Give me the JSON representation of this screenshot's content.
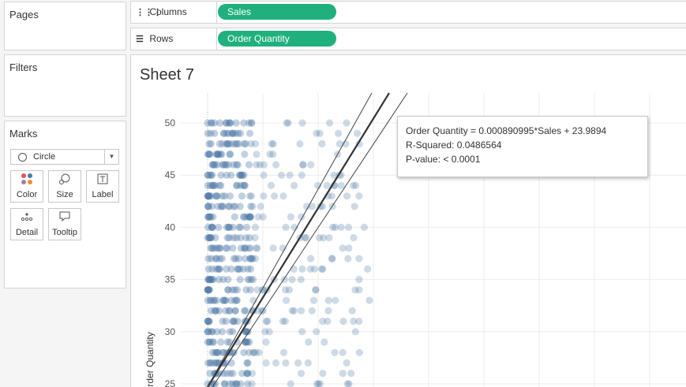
{
  "panels": {
    "pages_title": "Pages",
    "filters_title": "Filters",
    "marks_title": "Marks"
  },
  "marks": {
    "mark_type": "Circle",
    "buttons": [
      {
        "label": "Color",
        "icon": "color-dots-icon"
      },
      {
        "label": "Size",
        "icon": "size-icon"
      },
      {
        "label": "Label",
        "icon": "label-icon"
      },
      {
        "label": "Detail",
        "icon": "detail-icon"
      },
      {
        "label": "Tooltip",
        "icon": "tooltip-icon"
      }
    ]
  },
  "shelves": {
    "columns_label": "Columns",
    "columns_pill": "Sales",
    "rows_label": "Rows",
    "rows_pill": "Order Quantity",
    "pill_color": "#1fb07e"
  },
  "sheet": {
    "title": "Sheet 7"
  },
  "tooltip": {
    "line1": "Order Quantity = 0.000890995*Sales + 23.9894",
    "line2": "R-Squared: 0.0486564",
    "line3": "P-value: < 0.0001"
  },
  "chart_data": {
    "type": "scatter",
    "ylabel": "Order Quantity",
    "y_ticks": [
      "25",
      "30",
      "35",
      "40",
      "45",
      "50"
    ],
    "ylim": [
      24.5,
      52
    ],
    "y_range_visible": [
      25,
      50
    ],
    "point_color": "#4e79a7",
    "trend_line": {
      "slope": 0.000890995,
      "intercept": 23.9894,
      "r_squared": 0.0486564,
      "p_value": "< 0.0001"
    },
    "grid": true,
    "note": "Points concentrated near low sales for every integer Order Quantity 25–50; sparser points extend to higher sales."
  }
}
